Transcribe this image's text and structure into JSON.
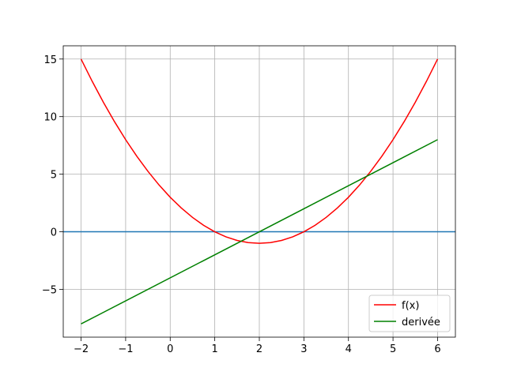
{
  "chart_data": {
    "type": "line",
    "series": [
      {
        "name": "f(x)",
        "color": "#ff0000",
        "x": [
          -2,
          -1.75,
          -1.5,
          -1.25,
          -1,
          -0.75,
          -0.5,
          -0.25,
          0,
          0.25,
          0.5,
          0.75,
          1,
          1.25,
          1.5,
          1.75,
          2,
          2.25,
          2.5,
          2.75,
          3,
          3.25,
          3.5,
          3.75,
          4,
          4.25,
          4.5,
          4.75,
          5,
          5.25,
          5.5,
          5.75,
          6
        ],
        "values": [
          15,
          13.0625,
          11.25,
          9.5625,
          8,
          6.5625,
          5.25,
          4.0625,
          3,
          2.0625,
          1.25,
          0.5625,
          0,
          -0.4375,
          -0.75,
          -0.9375,
          -1,
          -0.9375,
          -0.75,
          -0.4375,
          0,
          0.5625,
          1.25,
          2.0625,
          3,
          4.0625,
          5.25,
          6.5625,
          8,
          9.5625,
          11.25,
          13.0625,
          15
        ]
      },
      {
        "name": "derivée",
        "color": "#008000",
        "x": [
          -2,
          6
        ],
        "values": [
          -8,
          8
        ]
      }
    ],
    "axhline": {
      "y": 0,
      "color": "#1f77b4"
    },
    "xlim": [
      -2.4,
      6.4
    ],
    "ylim": [
      -9.15,
      16.15
    ],
    "xticks": [
      {
        "value": -2,
        "label": "−2"
      },
      {
        "value": -1,
        "label": "−1"
      },
      0,
      1,
      2,
      3,
      4,
      5,
      6
    ],
    "yticks": [
      {
        "value": -5,
        "label": "−5"
      },
      0,
      5,
      10,
      15
    ],
    "grid": true,
    "legend": "lower right"
  }
}
